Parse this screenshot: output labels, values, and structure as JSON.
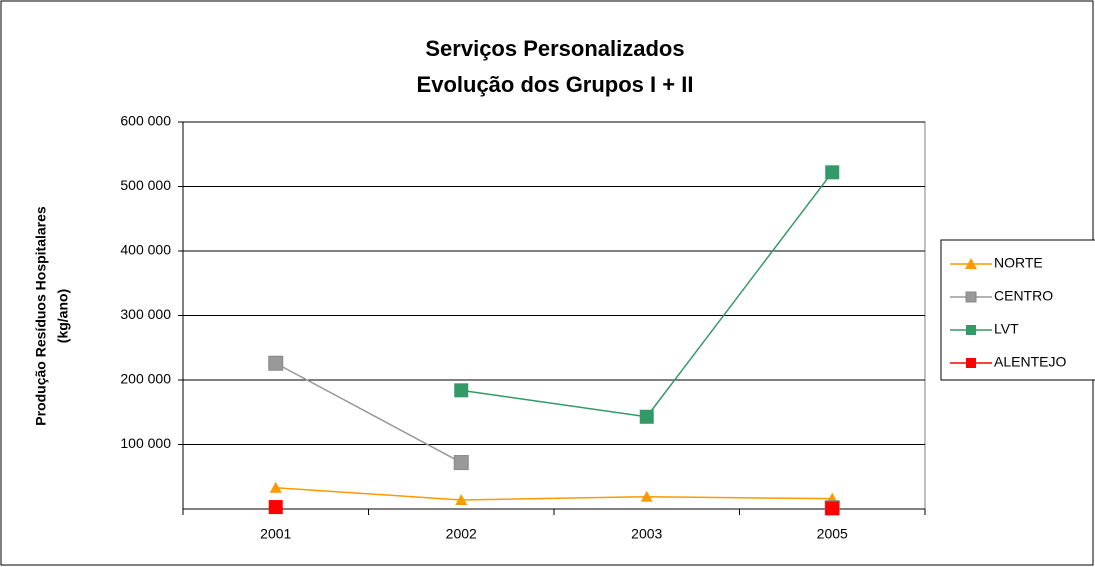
{
  "chart_data": {
    "type": "line",
    "title": "Serviços Personalizados",
    "subtitle": "Evolução dos Grupos I + II",
    "y_label": [
      "Produção Resíduos Hospitalares",
      "(kg/ano)"
    ],
    "categories": [
      "2001",
      "2002",
      "2003",
      "2005"
    ],
    "series": [
      {
        "name": "NORTE",
        "color": "#ff9900",
        "marker": "triangle",
        "values": [
          33000,
          14000,
          19000,
          16000
        ]
      },
      {
        "name": "CENTRO",
        "color": "#999999",
        "marker": "square",
        "values": [
          226000,
          72000,
          null,
          2000
        ]
      },
      {
        "name": "LVT",
        "color": "#339966",
        "marker": "square",
        "values": [
          null,
          184000,
          143000,
          522000
        ]
      },
      {
        "name": "ALENTEJO",
        "color": "#ff0000",
        "marker": "square",
        "values": [
          3000,
          null,
          null,
          1000
        ]
      }
    ],
    "ylim": [
      0,
      600000
    ],
    "yticks": [
      {
        "value": 100000,
        "label": "100 000"
      },
      {
        "value": 200000,
        "label": "200 000"
      },
      {
        "value": 300000,
        "label": "300 000"
      },
      {
        "value": 400000,
        "label": "400 000"
      },
      {
        "value": 500000,
        "label": "500 000"
      },
      {
        "value": 600000,
        "label": "600 000"
      }
    ],
    "grid": true,
    "legend": "right"
  }
}
